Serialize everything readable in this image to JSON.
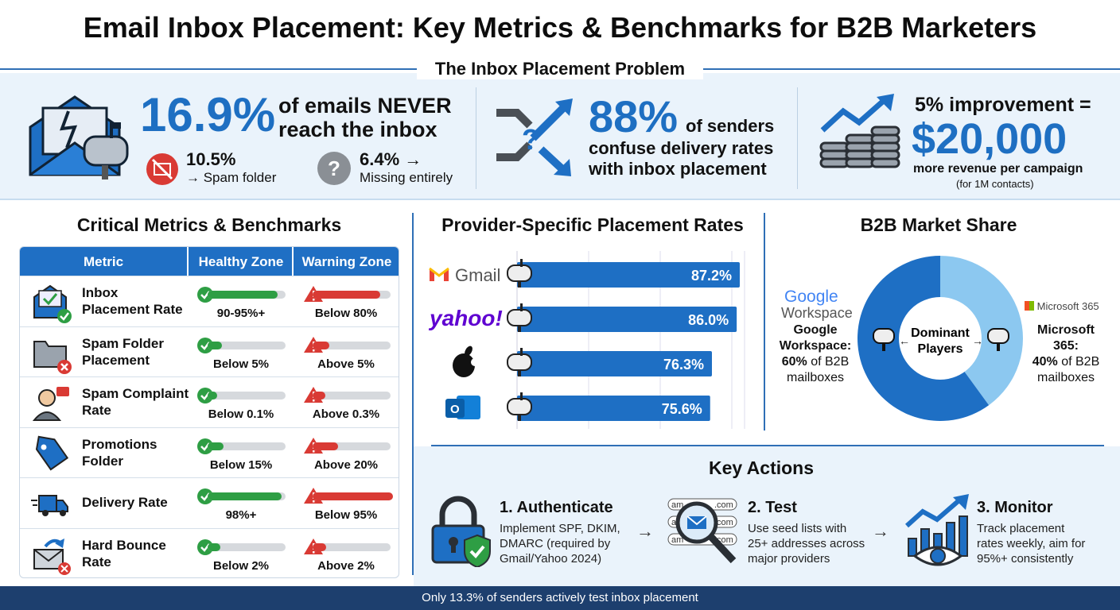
{
  "title": "Email Inbox Placement: Key Metrics & Benchmarks for B2B Marketers",
  "problem": {
    "heading": "The Inbox Placement Problem",
    "stat1": {
      "value": "16.9%",
      "text_line1": "of emails NEVER",
      "text_line2": "reach the inbox",
      "spam": {
        "value": "10.5%",
        "label": "→ Spam folder"
      },
      "missing": {
        "value": "6.4% →",
        "label": "Missing entirely"
      }
    },
    "stat2": {
      "value": "88%",
      "text_line1": "of senders",
      "text_line2": "confuse delivery rates",
      "text_line3": "with inbox placement"
    },
    "stat3": {
      "intro": "5% improvement =",
      "value": "$20,000",
      "line1": "more revenue per campaign",
      "line2": "(for 1M contacts)"
    }
  },
  "metrics": {
    "title": "Critical Metrics & Benchmarks",
    "headers": [
      "Metric",
      "Healthy Zone",
      "Warning Zone"
    ],
    "rows": [
      {
        "name_l1": "Inbox",
        "name_l2": "Placement Rate",
        "healthy": "90-95%+",
        "warning": "Below 80%",
        "healthy_fill": 0.9,
        "warning_fill": 0.8,
        "icon": "envelope-check-icon"
      },
      {
        "name_l1": "Spam Folder",
        "name_l2": "Placement",
        "healthy": "Below 5%",
        "warning": "Above 5%",
        "healthy_fill": 0.18,
        "warning_fill": 0.2,
        "icon": "folder-x-icon"
      },
      {
        "name_l1": "Spam Complaint",
        "name_l2": "Rate",
        "healthy": "Below 0.1%",
        "warning": "Above 0.3%",
        "healthy_fill": 0.12,
        "warning_fill": 0.15,
        "icon": "angry-user-icon"
      },
      {
        "name_l1": "Promotions",
        "name_l2": "Folder",
        "healthy": "Below 15%",
        "warning": "Above 20%",
        "healthy_fill": 0.2,
        "warning_fill": 0.3,
        "icon": "tag-icon"
      },
      {
        "name_l1": "Delivery Rate",
        "name_l2": "",
        "healthy": "98%+",
        "warning": "Below 95%",
        "healthy_fill": 0.95,
        "warning_fill": 0.95,
        "icon": "truck-icon"
      },
      {
        "name_l1": "Hard Bounce",
        "name_l2": "Rate",
        "healthy": "Below 2%",
        "warning": "Above 2%",
        "healthy_fill": 0.16,
        "warning_fill": 0.16,
        "icon": "bounce-mail-icon"
      }
    ],
    "colors": {
      "healthy": "#2e9e44",
      "warning": "#d93a34"
    }
  },
  "providers": {
    "title": "Provider-Specific Placement Rates",
    "items": [
      {
        "name": "Gmail",
        "rate": 87.2,
        "label": "87.2%"
      },
      {
        "name": "yahoo!",
        "rate": 86.0,
        "label": "86.0%"
      },
      {
        "name": "Apple",
        "rate": 76.3,
        "label": "76.3%"
      },
      {
        "name": "Outlook",
        "rate": 75.6,
        "label": "75.6%"
      }
    ]
  },
  "share": {
    "title": "B2B Market Share",
    "center_l1": "Dominant",
    "center_l2": "Players",
    "google": {
      "logo_l1": "Google",
      "logo_l2": "Workspace",
      "l1": "Google",
      "l2": "Workspace:",
      "pct": "60%",
      "l3": "of B2B",
      "l4": "mailboxes",
      "share": 60,
      "color": "#1e6fc4"
    },
    "microsoft": {
      "logo": "Microsoft 365",
      "l1": "Microsoft",
      "l2": "365:",
      "pct": "40%",
      "l3": "of B2B",
      "l4": "mailboxes",
      "share": 40,
      "color": "#8cc8f0"
    }
  },
  "actions": {
    "title": "Key Actions",
    "items": [
      {
        "title": "1. Authenticate",
        "l1": "Implement SPF, DKIM,",
        "l2": "DMARC (required by",
        "l3": "Gmail/Yahoo 2024)"
      },
      {
        "title": "2. Test",
        "l1": "Use seed lists with",
        "l2": "25+ addresses across",
        "l3": "major providers"
      },
      {
        "title": "3. Monitor",
        "l1": "Track placement",
        "l2": "rates weekly, aim for",
        "l3": "95%+ consistently"
      }
    ],
    "test_icon_text": [
      "am",
      ".com",
      "am",
      ".com",
      "am",
      ".com"
    ]
  },
  "footer": "Only 13.3% of senders actively test inbox placement"
}
